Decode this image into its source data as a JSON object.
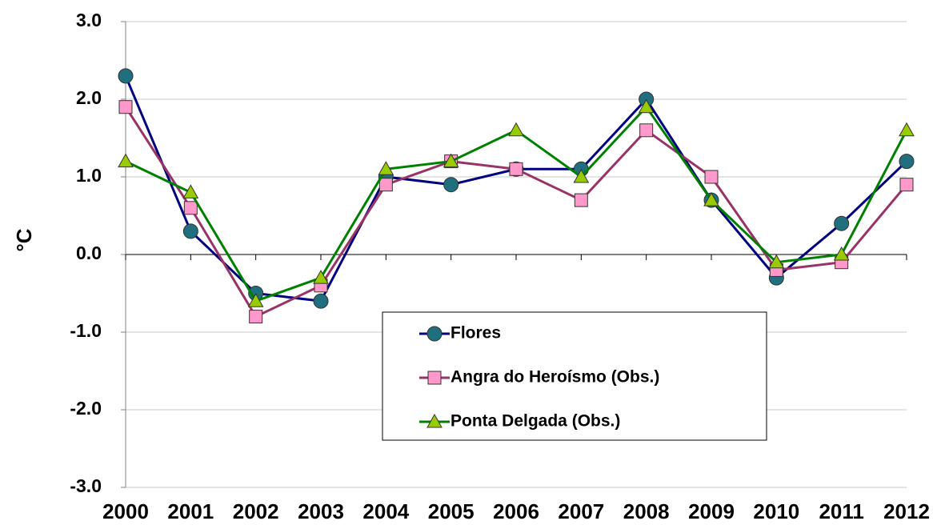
{
  "chart_data": {
    "type": "line",
    "y_label": "°C",
    "categories": [
      "2000",
      "2001",
      "2002",
      "2003",
      "2004",
      "2005",
      "2006",
      "2007",
      "2008",
      "2009",
      "2010",
      "2011",
      "2012"
    ],
    "series": [
      {
        "name": "Flores",
        "color": "#000080",
        "marker_color": "#1f6f7f",
        "marker": "circle",
        "values": [
          2.3,
          0.3,
          -0.5,
          -0.6,
          1.0,
          0.9,
          1.1,
          1.1,
          2.0,
          0.7,
          -0.3,
          0.4,
          1.2
        ]
      },
      {
        "name": "Angra do Heroísmo (Obs.)",
        "color": "#993366",
        "marker_color": "#ff99cc",
        "marker": "square",
        "values": [
          1.9,
          0.6,
          -0.8,
          -0.4,
          0.9,
          1.2,
          1.1,
          0.7,
          1.6,
          1.0,
          -0.2,
          -0.1,
          0.9
        ]
      },
      {
        "name": "Ponta Delgada (Obs.)",
        "color": "#008000",
        "marker_color": "#99cc00",
        "marker": "triangle",
        "values": [
          1.2,
          0.8,
          -0.6,
          -0.3,
          1.1,
          1.2,
          1.6,
          1.0,
          1.9,
          0.7,
          -0.1,
          0.0,
          1.6
        ]
      }
    ],
    "ylim": [
      -3,
      3
    ],
    "yticks": [
      {
        "value": -3,
        "label": "-3.0"
      },
      {
        "value": -2,
        "label": "-2.0"
      },
      {
        "value": -1,
        "label": "-1.0"
      },
      {
        "value": 0,
        "label": "0.0"
      },
      {
        "value": 1,
        "label": "1.0"
      },
      {
        "value": 2,
        "label": "2.0"
      },
      {
        "value": 3,
        "label": "3.0"
      }
    ],
    "grid": true
  }
}
